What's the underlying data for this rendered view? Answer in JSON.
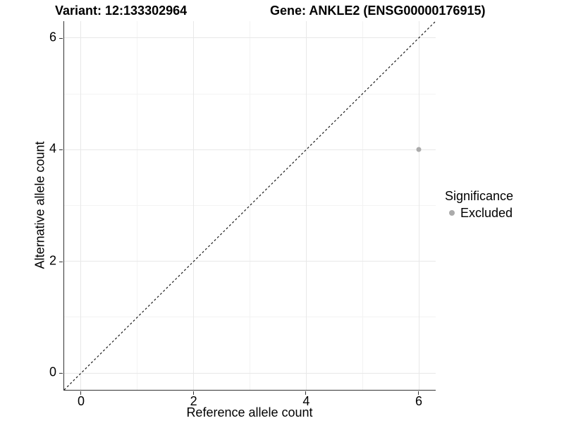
{
  "header": {
    "variant_title": "Variant: 12:133302964",
    "gene_title": "Gene: ANKLE2 (ENSG00000176915)"
  },
  "chart_data": {
    "type": "scatter",
    "title": "Variant: 12:133302964   Gene: ANKLE2 (ENSG00000176915)",
    "xlabel": "Reference allele count",
    "ylabel": "Alternative allele count",
    "xlim": [
      -0.3,
      6.3
    ],
    "ylim": [
      -0.3,
      6.3
    ],
    "xticks": [
      0,
      2,
      4,
      6
    ],
    "yticks": [
      0,
      2,
      4,
      6
    ],
    "xticks_minor": [
      1,
      3,
      5
    ],
    "yticks_minor": [
      1,
      3,
      5
    ],
    "grid": "major and minor gridlines on white panel",
    "reference_line": {
      "label": "identity line y = x",
      "style": "dashed",
      "color": "#1a1a1a",
      "from": [
        -0.3,
        -0.3
      ],
      "to": [
        6.3,
        6.3
      ]
    },
    "series": [
      {
        "name": "Excluded",
        "color": "#ababab",
        "marker": "circle",
        "points": [
          {
            "x": 6,
            "y": 4
          }
        ]
      }
    ],
    "legend": {
      "title": "Significance",
      "position": "right",
      "items": [
        {
          "label": "Excluded",
          "color": "#ababab",
          "marker": "circle"
        }
      ]
    },
    "colors": {
      "grid_major": "#e8e8e8",
      "grid_minor": "#f3f3f3",
      "axis_line": "#333333",
      "tick_mark": "#333333",
      "text": "#000000"
    }
  }
}
